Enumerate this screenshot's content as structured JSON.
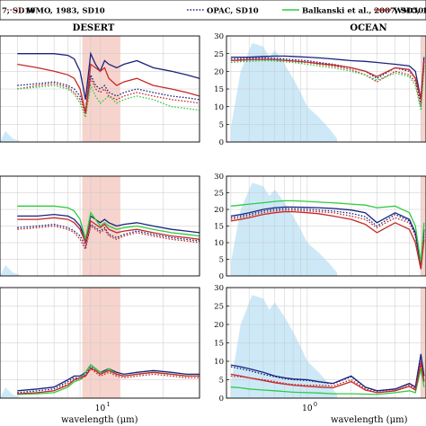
{
  "legend": {
    "entries": [
      {
        "label": "7, SD10",
        "color": "#1a237e",
        "style": "solid"
      },
      {
        "label": "WMO, 1983, SD10",
        "color": "#c62828",
        "style": "dotted"
      },
      {
        "label": "OPAC, SD10",
        "color": "#1a237e",
        "style": "dotted"
      },
      {
        "label": "Balkanski et al., 2007, SD50",
        "color": "#2ecc40",
        "style": "solid"
      },
      {
        "label": "WMO, 1983,",
        "color": "#c62828",
        "style": "solid"
      }
    ]
  },
  "colors": {
    "blue": "#1a237e",
    "red": "#c62828",
    "green": "#2ecc40",
    "shade_band": "#f4cdc4",
    "shade_spectrum": "#cde9f7"
  },
  "chart_data": [
    {
      "type": "line",
      "title": "DESERT",
      "xlabel": "",
      "xscale": "log",
      "x_tick_labels": [],
      "y_tick_labels": [],
      "x": [
        4,
        5,
        6,
        7,
        7.5,
        8,
        8.5,
        9,
        9.5,
        10,
        10.5,
        11,
        12,
        13,
        15,
        18,
        22,
        26,
        30
      ],
      "series": [
        {
          "name": "a",
          "color": "#1a237e",
          "style": "solid",
          "values": [
            25,
            25,
            25,
            24.5,
            23.5,
            20,
            12,
            25,
            22,
            20,
            23,
            22,
            21,
            22,
            23,
            21,
            20,
            19,
            18
          ]
        },
        {
          "name": "b",
          "color": "#c62828",
          "style": "dotted",
          "values": [
            15,
            16,
            16.5,
            15.5,
            14,
            12,
            8,
            18,
            15,
            14,
            15,
            13,
            12,
            13,
            14,
            13,
            12,
            11.5,
            11
          ]
        },
        {
          "name": "c",
          "color": "#1a237e",
          "style": "dotted",
          "values": [
            16,
            16.5,
            17,
            16,
            15,
            13,
            9,
            19,
            16,
            15,
            16,
            14,
            13,
            14,
            15,
            14,
            13,
            12.5,
            12
          ]
        },
        {
          "name": "d",
          "color": "#2ecc40",
          "style": "dotted",
          "values": [
            15,
            15.5,
            16,
            15,
            13.5,
            11,
            7,
            16,
            13,
            11,
            12,
            13,
            11,
            12,
            13,
            12,
            10,
            9.5,
            9
          ]
        },
        {
          "name": "e",
          "color": "#c62828",
          "style": "solid",
          "values": [
            22,
            21,
            20,
            19,
            18,
            15,
            8,
            22,
            21,
            20,
            21,
            18,
            16,
            17,
            18,
            16,
            15,
            14,
            13
          ]
        }
      ]
    },
    {
      "type": "line",
      "title": "OCEAN",
      "xlabel": "",
      "xscale": "log",
      "x_tick_labels": [],
      "y_ticks": [
        0,
        5,
        10,
        15,
        20,
        25,
        30
      ],
      "y_tick_labels": [
        "0",
        "5",
        "10",
        "15",
        "20",
        "25",
        "30"
      ],
      "ylim": [
        0,
        30
      ],
      "x": [
        0.3,
        0.35,
        0.4,
        0.5,
        0.6,
        0.7,
        0.8,
        1,
        1.2,
        1.5,
        2,
        2.5,
        3,
        4,
        5,
        5.5,
        6,
        6.3
      ],
      "series": [
        {
          "name": "a",
          "color": "#1a237e",
          "style": "solid",
          "values": [
            24,
            24,
            24,
            24.2,
            24.3,
            24.3,
            24.2,
            24,
            23.8,
            23.5,
            23,
            22.8,
            22.5,
            22,
            21.5,
            20,
            12,
            24
          ]
        },
        {
          "name": "b",
          "color": "#c62828",
          "style": "dotted",
          "values": [
            23,
            23,
            23.2,
            23.3,
            23.2,
            23,
            22.8,
            22.5,
            22,
            21.5,
            20.5,
            19,
            17,
            20,
            19,
            17,
            10,
            22
          ]
        },
        {
          "name": "c",
          "color": "#1a237e",
          "style": "dotted",
          "values": [
            23.5,
            23.6,
            23.7,
            23.8,
            23.7,
            23.5,
            23.3,
            23,
            22.5,
            22,
            21,
            20,
            18,
            21,
            20,
            18,
            11,
            23
          ]
        },
        {
          "name": "d",
          "color": "#2ecc40",
          "style": "dotted",
          "values": [
            22.5,
            22.7,
            22.8,
            23,
            22.9,
            22.7,
            22.5,
            22,
            21.5,
            21,
            20,
            19,
            17.5,
            19.5,
            18.5,
            16,
            9,
            21
          ]
        },
        {
          "name": "e",
          "color": "#c62828",
          "style": "solid",
          "values": [
            23,
            23.2,
            23.3,
            23.4,
            23.3,
            23.1,
            22.9,
            22.6,
            22.2,
            21.8,
            21,
            20,
            18.5,
            21,
            20.5,
            18,
            12,
            23
          ]
        }
      ]
    },
    {
      "type": "line",
      "title": "",
      "xlabel": "",
      "xscale": "log",
      "x_tick_labels": [],
      "y_tick_labels": [],
      "x": [
        4,
        5,
        6,
        7,
        7.5,
        8,
        8.5,
        9,
        9.5,
        10,
        10.5,
        11,
        12,
        13,
        15,
        18,
        22,
        26,
        30
      ],
      "series": [
        {
          "name": "a",
          "color": "#1a237e",
          "style": "solid",
          "values": [
            18,
            18,
            18.5,
            18,
            17,
            15,
            11,
            18,
            17,
            16,
            17,
            16,
            15,
            15.5,
            16,
            15,
            14,
            13.5,
            13
          ]
        },
        {
          "name": "b",
          "color": "#c62828",
          "style": "dotted",
          "values": [
            14,
            14.5,
            15,
            14,
            13,
            11,
            8,
            15,
            14,
            13,
            14,
            12,
            11,
            12,
            13,
            12,
            11,
            10.5,
            10
          ]
        },
        {
          "name": "c",
          "color": "#1a237e",
          "style": "dotted",
          "values": [
            14.5,
            15,
            15.5,
            14.5,
            13.5,
            12,
            9,
            15.5,
            14.5,
            13.5,
            14.5,
            12.5,
            11.5,
            12.5,
            13.5,
            12.5,
            11.5,
            11,
            10.5
          ]
        },
        {
          "name": "d",
          "color": "#2ecc40",
          "style": "solid",
          "values": [
            21,
            21,
            21,
            20.5,
            19.5,
            17,
            11,
            19,
            17,
            15,
            16,
            15,
            14,
            14.5,
            15,
            14,
            13,
            12.5,
            12
          ]
        },
        {
          "name": "e",
          "color": "#c62828",
          "style": "solid",
          "values": [
            17,
            17,
            17.5,
            17,
            16,
            14,
            10,
            16.5,
            15.5,
            14.5,
            15.5,
            14,
            13,
            13.5,
            14,
            13,
            12,
            11.5,
            11
          ]
        }
      ]
    },
    {
      "type": "line",
      "title": "",
      "xlabel": "",
      "xscale": "log",
      "x_tick_labels": [],
      "y_ticks": [
        0,
        5,
        10,
        15,
        20,
        25,
        30
      ],
      "y_tick_labels": [
        "0",
        "5",
        "10",
        "15",
        "20",
        "25",
        "30"
      ],
      "ylim": [
        0,
        30
      ],
      "x": [
        0.3,
        0.35,
        0.4,
        0.5,
        0.6,
        0.7,
        0.8,
        1,
        1.2,
        1.5,
        2,
        2.5,
        3,
        4,
        5,
        5.5,
        6,
        6.3
      ],
      "series": [
        {
          "name": "a",
          "color": "#1a237e",
          "style": "solid",
          "values": [
            18,
            18.5,
            19,
            20,
            20.5,
            20.7,
            20.7,
            20.6,
            20.5,
            20.3,
            19.8,
            19,
            16,
            19,
            17,
            13,
            3,
            14
          ]
        },
        {
          "name": "b",
          "color": "#c62828",
          "style": "dotted",
          "values": [
            17,
            17.5,
            18,
            19,
            19.5,
            19.7,
            19.7,
            19.5,
            19.3,
            19,
            18,
            17,
            14.5,
            17.5,
            16,
            12,
            2,
            12
          ]
        },
        {
          "name": "c",
          "color": "#1a237e",
          "style": "dotted",
          "values": [
            17.5,
            18,
            18.5,
            19.5,
            20,
            20.2,
            20.2,
            20,
            19.8,
            19.5,
            18.8,
            17.8,
            15,
            18.5,
            16.5,
            12.5,
            2.5,
            13
          ]
        },
        {
          "name": "d",
          "color": "#2ecc40",
          "style": "solid",
          "values": [
            21,
            21.3,
            21.6,
            22,
            22.4,
            22.6,
            22.6,
            22.4,
            22.2,
            22,
            21.6,
            21.3,
            20.5,
            21,
            19,
            15,
            4,
            16
          ]
        },
        {
          "name": "e",
          "color": "#c62828",
          "style": "solid",
          "values": [
            16.5,
            17,
            17.5,
            18.5,
            19,
            19.3,
            19.3,
            19,
            18.7,
            18,
            17,
            15.5,
            13,
            16,
            14,
            10,
            2,
            11
          ]
        }
      ]
    },
    {
      "type": "line",
      "title": "",
      "xlabel": "wavelength (μm)",
      "xscale": "log",
      "x_tick_labels": [
        "10¹"
      ],
      "y_tick_labels": [],
      "x": [
        4,
        5,
        6,
        7,
        7.5,
        8,
        8.5,
        9,
        9.5,
        10,
        10.5,
        11,
        12,
        13,
        15,
        18,
        22,
        26,
        30
      ],
      "series": [
        {
          "name": "a",
          "color": "#1a237e",
          "style": "solid",
          "values": [
            2,
            2.5,
            3,
            5,
            6,
            6,
            7,
            9,
            8,
            7,
            7.5,
            8,
            7,
            6.5,
            7,
            7.5,
            7,
            6.5,
            6.5
          ]
        },
        {
          "name": "b",
          "color": "#c62828",
          "style": "dotted",
          "values": [
            1,
            1.5,
            2,
            4,
            5,
            5,
            6,
            8,
            7,
            6,
            6.5,
            7,
            6,
            5.5,
            6,
            6.5,
            6,
            5.5,
            5.5
          ]
        },
        {
          "name": "c",
          "color": "#1a237e",
          "style": "dotted",
          "values": [
            1.5,
            2,
            2.5,
            4.5,
            5.5,
            5.5,
            6.5,
            8.5,
            7.5,
            6.5,
            7,
            7.5,
            6.5,
            6,
            6.5,
            7,
            6.5,
            6,
            6
          ]
        },
        {
          "name": "d",
          "color": "#2ecc40",
          "style": "solid",
          "values": [
            1,
            1.2,
            1.5,
            3,
            4.5,
            5,
            7,
            9,
            8,
            7,
            7,
            8,
            6.5,
            6,
            6.5,
            7,
            6.5,
            6,
            6
          ]
        },
        {
          "name": "e",
          "color": "#c62828",
          "style": "solid",
          "values": [
            1.2,
            1.5,
            2,
            3.5,
            5,
            5.5,
            6,
            8,
            7.5,
            6.5,
            7,
            7.5,
            6.5,
            6,
            6.5,
            7,
            6.5,
            6,
            6
          ]
        }
      ]
    },
    {
      "type": "line",
      "title": "",
      "xlabel": "wavelength (μm)",
      "xscale": "log",
      "x_tick_labels": [
        "10⁰"
      ],
      "y_ticks": [
        0,
        5,
        10,
        15,
        20,
        25,
        30
      ],
      "y_tick_labels": [
        "0",
        "5",
        "10",
        "15",
        "20",
        "25",
        "30"
      ],
      "ylim": [
        0,
        30
      ],
      "x": [
        0.3,
        0.35,
        0.4,
        0.5,
        0.6,
        0.7,
        0.8,
        1,
        1.2,
        1.5,
        2,
        2.5,
        3,
        4,
        5,
        5.5,
        6,
        6.3
      ],
      "series": [
        {
          "name": "a",
          "color": "#1a237e",
          "style": "solid",
          "values": [
            9,
            8.5,
            8,
            7,
            6,
            5.5,
            5.2,
            5,
            4.5,
            4,
            6,
            3,
            2,
            2.5,
            4,
            3,
            12,
            6
          ]
        },
        {
          "name": "b",
          "color": "#c62828",
          "style": "dotted",
          "values": [
            6,
            5.8,
            5.5,
            5,
            4.5,
            4,
            3.7,
            3.5,
            3.5,
            3.3,
            5,
            2.5,
            1.5,
            2,
            3.5,
            2.5,
            10,
            5
          ]
        },
        {
          "name": "c",
          "color": "#1a237e",
          "style": "dotted",
          "values": [
            8.5,
            8,
            7.5,
            6.5,
            5.8,
            5.3,
            5,
            4.8,
            4.4,
            3.9,
            5.8,
            2.9,
            1.9,
            2.4,
            3.9,
            2.9,
            11.5,
            5.8
          ]
        },
        {
          "name": "d",
          "color": "#2ecc40",
          "style": "solid",
          "values": [
            3,
            2.8,
            2.5,
            2.2,
            2,
            1.8,
            1.6,
            1.5,
            1.4,
            1.2,
            1.2,
            1.1,
            1,
            1.5,
            2,
            1.5,
            8,
            3
          ]
        },
        {
          "name": "e",
          "color": "#c62828",
          "style": "solid",
          "values": [
            6.5,
            6,
            5.5,
            4.8,
            4.2,
            3.8,
            3.5,
            3.2,
            3,
            2.8,
            4.5,
            2.2,
            1.5,
            2,
            3.2,
            2.2,
            9.5,
            4.5
          ]
        }
      ]
    }
  ],
  "panels_text": {
    "desert_title": "DESERT",
    "ocean_title": "OCEAN",
    "xlabel": "wavelength (μm)",
    "tick_left": "10",
    "tick_left_sup": "1",
    "tick_right": "10",
    "tick_right_sup": "0"
  }
}
